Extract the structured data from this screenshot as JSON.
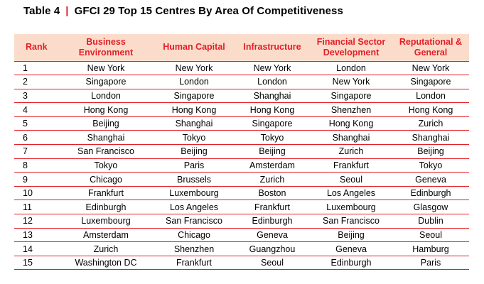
{
  "title": {
    "table_label": "Table 4",
    "separator": "|",
    "text": "GFCI 29  Top 15 Centres By Area Of Competitiveness"
  },
  "colors": {
    "accent_red": "#e41e26",
    "header_bg": "#fbdccb"
  },
  "table": {
    "headers": [
      "Rank",
      "Business Environment",
      "Human Capital",
      "Infrastructure",
      "Financial Sector Development",
      "Reputational & General"
    ],
    "rows": [
      [
        "1",
        "New York",
        "New York",
        "New York",
        "London",
        "New York"
      ],
      [
        "2",
        "Singapore",
        "London",
        "London",
        "New York",
        "Singapore"
      ],
      [
        "3",
        "London",
        "Singapore",
        "Shanghai",
        "Singapore",
        "London"
      ],
      [
        "4",
        "Hong Kong",
        "Hong Kong",
        "Hong Kong",
        "Shenzhen",
        "Hong Kong"
      ],
      [
        "5",
        "Beijing",
        "Shanghai",
        "Singapore",
        "Hong Kong",
        "Zurich"
      ],
      [
        "6",
        "Shanghai",
        "Tokyo",
        "Tokyo",
        "Shanghai",
        "Shanghai"
      ],
      [
        "7",
        "San Francisco",
        "Beijing",
        "Beijing",
        "Zurich",
        "Beijing"
      ],
      [
        "8",
        "Tokyo",
        "Paris",
        "Amsterdam",
        "Frankfurt",
        "Tokyo"
      ],
      [
        "9",
        "Chicago",
        "Brussels",
        "Zurich",
        "Seoul",
        "Geneva"
      ],
      [
        "10",
        "Frankfurt",
        "Luxembourg",
        "Boston",
        "Los Angeles",
        "Edinburgh"
      ],
      [
        "11",
        "Edinburgh",
        "Los Angeles",
        "Frankfurt",
        "Luxembourg",
        "Glasgow"
      ],
      [
        "12",
        "Luxembourg",
        "San Francisco",
        "Edinburgh",
        "San Francisco",
        "Dublin"
      ],
      [
        "13",
        "Amsterdam",
        "Chicago",
        "Geneva",
        "Beijing",
        "Seoul"
      ],
      [
        "14",
        "Zurich",
        "Shenzhen",
        "Guangzhou",
        "Geneva",
        "Hamburg"
      ],
      [
        "15",
        "Washington DC",
        "Frankfurt",
        "Seoul",
        "Edinburgh",
        "Paris"
      ]
    ]
  }
}
